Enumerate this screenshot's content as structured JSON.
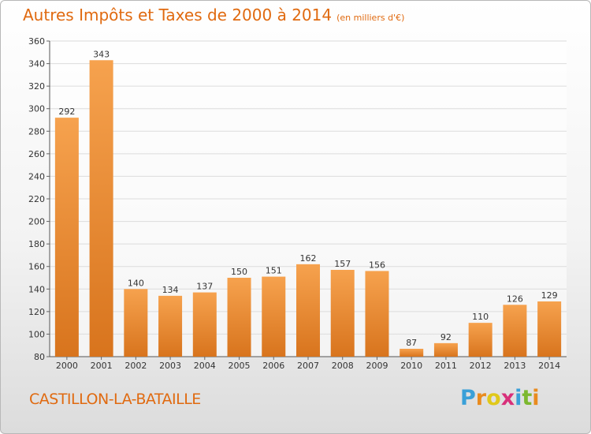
{
  "header": {
    "title": "Autres Impôts et Taxes de 2000 à 2014",
    "unit": "(en milliers d'€)"
  },
  "footer": {
    "city": "CASTILLON-LA-BATAILLE",
    "logo_letters": [
      "P",
      "r",
      "o",
      "x",
      "i",
      "t",
      "i"
    ],
    "logo_colors": [
      "#3aa0d8",
      "#e98b1e",
      "#e0c81a",
      "#d8307a",
      "#3aa0d8",
      "#7cb82f",
      "#e98b1e"
    ]
  },
  "colors": {
    "bar_light": "#f6a24e",
    "bar_dark": "#d8741d",
    "grid": "#dcdcdc"
  },
  "chart_data": {
    "type": "bar",
    "title": "Autres Impôts et Taxes de 2000 à 2014",
    "subtitle": "(en milliers d'€)",
    "categories": [
      "2000",
      "2001",
      "2002",
      "2003",
      "2004",
      "2005",
      "2006",
      "2007",
      "2008",
      "2009",
      "2010",
      "2011",
      "2012",
      "2013",
      "2014"
    ],
    "values": [
      292,
      343,
      140,
      134,
      137,
      150,
      151,
      162,
      157,
      156,
      87,
      92,
      110,
      126,
      129
    ],
    "ylim": [
      80,
      360
    ],
    "yticks": [
      80,
      100,
      120,
      140,
      160,
      180,
      200,
      220,
      240,
      260,
      280,
      300,
      320,
      340,
      360
    ],
    "grid": true,
    "legend": "none"
  }
}
